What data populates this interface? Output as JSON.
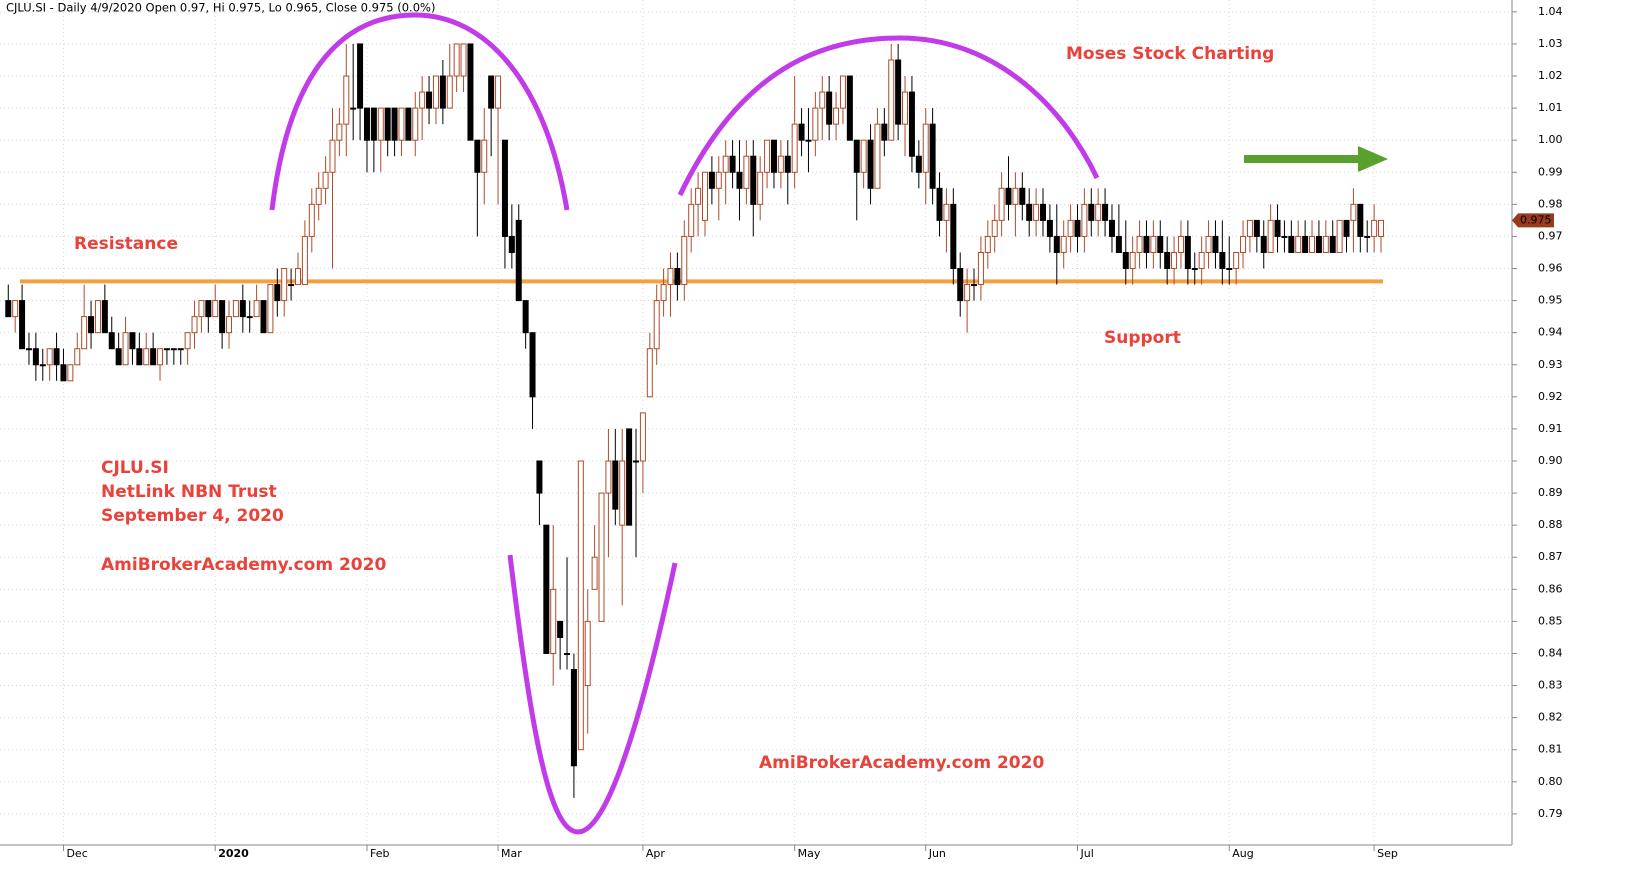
{
  "chart_data": {
    "type": "candlestick",
    "title": "CJLU.SI - Daily 4/9/2020 Open 0.97, Hi 0.975, Lo 0.965, Close 0.975 (0.0%)",
    "annotations": [
      "Moses Stock Charting",
      "Resistance",
      "Support",
      "CJLU.SI",
      "NetLink NBN Trust",
      "September 4, 2020",
      "AmiBrokerAcademy.com  2020",
      "AmiBrokerAcademy.com  2020"
    ],
    "last_price": 0.975,
    "level": 0.956,
    "level_color": "#f5a040",
    "up_color": "#b04a2a",
    "down_color": "#000000",
    "ylim": [
      0.7803,
      1.0437
    ],
    "yticks": [
      {
        "value": 0.79,
        "label": "0.79"
      },
      {
        "value": 0.8,
        "label": "0.80"
      },
      0.81,
      0.82,
      0.83,
      0.84,
      0.85,
      0.86,
      0.87,
      0.88,
      0.89,
      {
        "value": 0.9,
        "label": "0.90"
      },
      0.91,
      0.92,
      0.93,
      0.94,
      0.95,
      0.96,
      0.97,
      0.98,
      0.99,
      {
        "value": 1,
        "label": "1.00"
      },
      1.01,
      1.02,
      1.03,
      1.04
    ],
    "xlim": [
      -1.2,
      217.7
    ],
    "xticks": [
      {
        "value": 8,
        "label": "Dec"
      },
      {
        "value": 30,
        "label": "2020"
      },
      {
        "value": 52,
        "label": "Feb"
      },
      {
        "value": 71,
        "label": "Mar"
      },
      {
        "value": 92,
        "label": "Apr"
      },
      {
        "value": 114,
        "label": "May"
      },
      {
        "value": 133,
        "label": "Jun"
      },
      {
        "value": 155,
        "label": "Jul"
      },
      {
        "value": 177,
        "label": "Aug"
      },
      {
        "value": 198,
        "label": "Sep"
      }
    ],
    "grid": true,
    "ohlc": [
      [
        0.95,
        0.955,
        0.945,
        0.945
      ],
      [
        0.945,
        0.95,
        0.94,
        0.95
      ],
      [
        0.95,
        0.955,
        0.935,
        0.935
      ],
      [
        0.935,
        0.94,
        0.93,
        0.935
      ],
      [
        0.935,
        0.94,
        0.925,
        0.93
      ],
      [
        0.93,
        0.935,
        0.925,
        0.93
      ],
      [
        0.93,
        0.935,
        0.925,
        0.935
      ],
      [
        0.935,
        0.94,
        0.925,
        0.93
      ],
      [
        0.93,
        0.935,
        0.925,
        0.925
      ],
      [
        0.925,
        0.93,
        0.925,
        0.93
      ],
      [
        0.93,
        0.94,
        0.93,
        0.935
      ],
      [
        0.935,
        0.955,
        0.935,
        0.945
      ],
      [
        0.945,
        0.95,
        0.935,
        0.94
      ],
      [
        0.94,
        0.95,
        0.94,
        0.95
      ],
      [
        0.95,
        0.955,
        0.94,
        0.94
      ],
      [
        0.94,
        0.945,
        0.935,
        0.935
      ],
      [
        0.935,
        0.94,
        0.93,
        0.93
      ],
      [
        0.93,
        0.945,
        0.93,
        0.94
      ],
      [
        0.94,
        0.94,
        0.93,
        0.935
      ],
      [
        0.935,
        0.94,
        0.93,
        0.93
      ],
      [
        0.93,
        0.94,
        0.93,
        0.935
      ],
      [
        0.935,
        0.94,
        0.93,
        0.93
      ],
      [
        0.93,
        0.935,
        0.925,
        0.935
      ],
      [
        0.935,
        0.935,
        0.93,
        0.935
      ],
      [
        0.935,
        0.935,
        0.93,
        0.935
      ],
      [
        0.935,
        0.935,
        0.93,
        0.935
      ],
      [
        0.935,
        0.94,
        0.93,
        0.94
      ],
      [
        0.94,
        0.95,
        0.935,
        0.945
      ],
      [
        0.945,
        0.95,
        0.94,
        0.95
      ],
      [
        0.95,
        0.95,
        0.94,
        0.945
      ],
      [
        0.945,
        0.955,
        0.945,
        0.95
      ],
      [
        0.95,
        0.95,
        0.935,
        0.94
      ],
      [
        0.94,
        0.95,
        0.935,
        0.945
      ],
      [
        0.945,
        0.95,
        0.945,
        0.95
      ],
      [
        0.95,
        0.955,
        0.94,
        0.945
      ],
      [
        0.945,
        0.95,
        0.94,
        0.945
      ],
      [
        0.945,
        0.955,
        0.945,
        0.95
      ],
      [
        0.95,
        0.95,
        0.94,
        0.94
      ],
      [
        0.94,
        0.955,
        0.94,
        0.955
      ],
      [
        0.955,
        0.96,
        0.945,
        0.95
      ],
      [
        0.95,
        0.96,
        0.945,
        0.96
      ],
      [
        0.955,
        0.96,
        0.95,
        0.955
      ],
      [
        0.955,
        0.965,
        0.955,
        0.96
      ],
      [
        0.955,
        0.975,
        0.955,
        0.97
      ],
      [
        0.97,
        0.985,
        0.965,
        0.98
      ],
      [
        0.98,
        0.99,
        0.975,
        0.985
      ],
      [
        0.985,
        0.995,
        0.98,
        0.99
      ],
      [
        0.99,
        1.01,
        0.96,
        1.0
      ],
      [
        1.0,
        1.01,
        0.995,
        1.005
      ],
      [
        1.005,
        1.03,
        0.995,
        1.02
      ],
      [
        1.01,
        1.03,
        1.0,
        1.01
      ],
      [
        1.03,
        1.03,
        1.0,
        1.01
      ],
      [
        1.01,
        1.01,
        0.99,
        1.0
      ],
      [
        1.01,
        1.01,
        0.99,
        1.0
      ],
      [
        1.0,
        1.01,
        0.99,
        1.01
      ],
      [
        1.01,
        1.01,
        0.995,
        1.0
      ],
      [
        1.01,
        1.01,
        0.995,
        1.0
      ],
      [
        1.0,
        1.01,
        0.995,
        1.01
      ],
      [
        1.01,
        1.01,
        1.0,
        1.0
      ],
      [
        1.0,
        1.015,
        0.995,
        1.01
      ],
      [
        1.01,
        1.02,
        1.0,
        1.015
      ],
      [
        1.015,
        1.02,
        1.005,
        1.01
      ],
      [
        1.01,
        1.02,
        1.005,
        1.02
      ],
      [
        1.02,
        1.025,
        1.005,
        1.01
      ],
      [
        1.01,
        1.03,
        1.01,
        1.02
      ],
      [
        1.02,
        1.03,
        1.015,
        1.03
      ],
      [
        1.02,
        1.03,
        1.015,
        1.03
      ],
      [
        1.03,
        1.03,
        1.0,
        1.0
      ],
      [
        1.0,
        1.0,
        0.97,
        0.99
      ],
      [
        0.99,
        1.01,
        0.98,
        1.0
      ],
      [
        1.02,
        1.02,
        0.995,
        1.01
      ],
      [
        1.01,
        1.02,
        0.98,
        1.02
      ],
      [
        1.0,
        1.0,
        0.96,
        0.97
      ],
      [
        0.97,
        0.98,
        0.96,
        0.965
      ],
      [
        0.975,
        0.98,
        0.95,
        0.95
      ],
      [
        0.95,
        0.95,
        0.935,
        0.94
      ],
      [
        0.94,
        0.94,
        0.91,
        0.92
      ],
      [
        0.9,
        0.9,
        0.88,
        0.89
      ],
      [
        0.88,
        0.88,
        0.84,
        0.84
      ],
      [
        0.84,
        0.88,
        0.83,
        0.86
      ],
      [
        0.85,
        0.85,
        0.835,
        0.845
      ],
      [
        0.84,
        0.87,
        0.835,
        0.84
      ],
      [
        0.835,
        0.84,
        0.795,
        0.805
      ],
      [
        0.81,
        0.9,
        0.81,
        0.9
      ],
      [
        0.83,
        0.86,
        0.815,
        0.85
      ],
      [
        0.86,
        0.88,
        0.86,
        0.87
      ],
      [
        0.85,
        0.89,
        0.85,
        0.89
      ],
      [
        0.89,
        0.91,
        0.87,
        0.9
      ],
      [
        0.9,
        0.91,
        0.88,
        0.885
      ],
      [
        0.88,
        0.91,
        0.855,
        0.9
      ],
      [
        0.91,
        0.91,
        0.88,
        0.88
      ],
      [
        0.9,
        0.91,
        0.87,
        0.9
      ],
      [
        0.9,
        0.915,
        0.89,
        0.915
      ],
      [
        0.92,
        0.94,
        0.92,
        0.935
      ],
      [
        0.935,
        0.955,
        0.93,
        0.95
      ],
      [
        0.95,
        0.96,
        0.945,
        0.955
      ],
      [
        0.955,
        0.965,
        0.945,
        0.96
      ],
      [
        0.96,
        0.965,
        0.95,
        0.955
      ],
      [
        0.955,
        0.975,
        0.95,
        0.97
      ],
      [
        0.97,
        0.985,
        0.965,
        0.98
      ],
      [
        0.98,
        0.99,
        0.97,
        0.985
      ],
      [
        0.975,
        0.99,
        0.97,
        0.99
      ],
      [
        0.99,
        0.995,
        0.98,
        0.985
      ],
      [
        0.985,
        0.995,
        0.975,
        0.99
      ],
      [
        0.99,
        1.0,
        0.98,
        0.995
      ],
      [
        0.995,
        1.0,
        0.985,
        0.99
      ],
      [
        0.99,
        1.0,
        0.975,
        0.985
      ],
      [
        0.985,
        1.0,
        0.98,
        0.995
      ],
      [
        0.995,
        1.0,
        0.97,
        0.98
      ],
      [
        0.98,
        0.995,
        0.975,
        0.99
      ],
      [
        0.99,
        1.0,
        0.985,
        1.0
      ],
      [
        1.0,
        1.0,
        0.985,
        0.99
      ],
      [
        0.99,
        1.0,
        0.985,
        0.995
      ],
      [
        0.995,
        1.0,
        0.98,
        0.99
      ],
      [
        0.99,
        1.02,
        0.985,
        1.005
      ],
      [
        1.005,
        1.01,
        0.995,
        1.0
      ],
      [
        1.0,
        1.01,
        0.99,
        1.0
      ],
      [
        1.0,
        1.015,
        0.995,
        1.01
      ],
      [
        1.01,
        1.02,
        1.0,
        1.015
      ],
      [
        1.015,
        1.02,
        1.0,
        1.005
      ],
      [
        1.005,
        1.015,
        1.0,
        1.01
      ],
      [
        1.01,
        1.02,
        1.005,
        1.02
      ],
      [
        1.02,
        1.02,
        1.0,
        1.0
      ],
      [
        1.0,
        1.0,
        0.975,
        0.99
      ],
      [
        0.99,
        1.0,
        0.985,
        1.0
      ],
      [
        1.0,
        1.005,
        0.98,
        0.985
      ],
      [
        0.985,
        1.01,
        0.985,
        1.005
      ],
      [
        1.005,
        1.01,
        0.995,
        1.0
      ],
      [
        1.0,
        1.03,
        1.0,
        1.025
      ],
      [
        1.025,
        1.03,
        1.0,
        1.005
      ],
      [
        1.005,
        1.02,
        0.995,
        1.015
      ],
      [
        1.015,
        1.02,
        0.99,
        0.995
      ],
      [
        0.995,
        1.0,
        0.985,
        0.99
      ],
      [
        0.99,
        1.01,
        0.98,
        1.005
      ],
      [
        1.005,
        1.01,
        0.98,
        0.985
      ],
      [
        0.985,
        0.99,
        0.97,
        0.975
      ],
      [
        0.975,
        0.985,
        0.965,
        0.98
      ],
      [
        0.98,
        0.985,
        0.955,
        0.96
      ],
      [
        0.96,
        0.965,
        0.945,
        0.95
      ],
      [
        0.95,
        0.96,
        0.94,
        0.955
      ],
      [
        0.955,
        0.96,
        0.95,
        0.955
      ],
      [
        0.955,
        0.97,
        0.95,
        0.965
      ],
      [
        0.965,
        0.975,
        0.96,
        0.97
      ],
      [
        0.97,
        0.98,
        0.965,
        0.975
      ],
      [
        0.975,
        0.99,
        0.97,
        0.985
      ],
      [
        0.985,
        0.995,
        0.975,
        0.98
      ],
      [
        0.98,
        0.99,
        0.97,
        0.985
      ],
      [
        0.985,
        0.99,
        0.975,
        0.98
      ],
      [
        0.98,
        0.985,
        0.97,
        0.975
      ],
      [
        0.975,
        0.985,
        0.97,
        0.98
      ],
      [
        0.98,
        0.985,
        0.97,
        0.975
      ],
      [
        0.975,
        0.98,
        0.965,
        0.97
      ],
      [
        0.97,
        0.98,
        0.955,
        0.965
      ],
      [
        0.965,
        0.975,
        0.96,
        0.97
      ],
      [
        0.97,
        0.98,
        0.965,
        0.975
      ],
      [
        0.975,
        0.98,
        0.965,
        0.97
      ],
      [
        0.97,
        0.985,
        0.965,
        0.98
      ],
      [
        0.98,
        0.985,
        0.97,
        0.975
      ],
      [
        0.975,
        0.985,
        0.97,
        0.98
      ],
      [
        0.98,
        0.985,
        0.97,
        0.975
      ],
      [
        0.975,
        0.98,
        0.965,
        0.97
      ],
      [
        0.97,
        0.98,
        0.965,
        0.965
      ],
      [
        0.965,
        0.975,
        0.955,
        0.96
      ],
      [
        0.96,
        0.97,
        0.955,
        0.965
      ],
      [
        0.965,
        0.975,
        0.96,
        0.97
      ],
      [
        0.97,
        0.975,
        0.96,
        0.965
      ],
      [
        0.965,
        0.975,
        0.96,
        0.97
      ],
      [
        0.97,
        0.975,
        0.96,
        0.965
      ],
      [
        0.965,
        0.97,
        0.955,
        0.96
      ],
      [
        0.96,
        0.97,
        0.955,
        0.965
      ],
      [
        0.965,
        0.975,
        0.96,
        0.97
      ],
      [
        0.97,
        0.975,
        0.955,
        0.96
      ],
      [
        0.96,
        0.965,
        0.955,
        0.96
      ],
      [
        0.96,
        0.97,
        0.955,
        0.965
      ],
      [
        0.965,
        0.975,
        0.96,
        0.97
      ],
      [
        0.97,
        0.975,
        0.96,
        0.965
      ],
      [
        0.965,
        0.975,
        0.955,
        0.96
      ],
      [
        0.96,
        0.97,
        0.955,
        0.96
      ],
      [
        0.96,
        0.965,
        0.955,
        0.965
      ],
      [
        0.965,
        0.975,
        0.96,
        0.97
      ],
      [
        0.97,
        0.975,
        0.965,
        0.975
      ],
      [
        0.975,
        0.975,
        0.965,
        0.97
      ],
      [
        0.97,
        0.975,
        0.96,
        0.965
      ],
      [
        0.965,
        0.98,
        0.965,
        0.975
      ],
      [
        0.975,
        0.98,
        0.965,
        0.97
      ],
      [
        0.97,
        0.975,
        0.965,
        0.97
      ],
      [
        0.97,
        0.975,
        0.965,
        0.965
      ],
      [
        0.965,
        0.975,
        0.965,
        0.97
      ],
      [
        0.97,
        0.975,
        0.965,
        0.965
      ],
      [
        0.965,
        0.975,
        0.965,
        0.97
      ],
      [
        0.97,
        0.975,
        0.965,
        0.965
      ],
      [
        0.965,
        0.975,
        0.965,
        0.97
      ],
      [
        0.97,
        0.975,
        0.965,
        0.965
      ],
      [
        0.965,
        0.975,
        0.965,
        0.975
      ],
      [
        0.975,
        0.975,
        0.965,
        0.97
      ],
      [
        0.975,
        0.985,
        0.965,
        0.98
      ],
      [
        0.98,
        0.98,
        0.965,
        0.97
      ],
      [
        0.97,
        0.975,
        0.965,
        0.97
      ],
      [
        0.97,
        0.98,
        0.965,
        0.975
      ],
      [
        0.97,
        0.975,
        0.965,
        0.975
      ]
    ]
  }
}
